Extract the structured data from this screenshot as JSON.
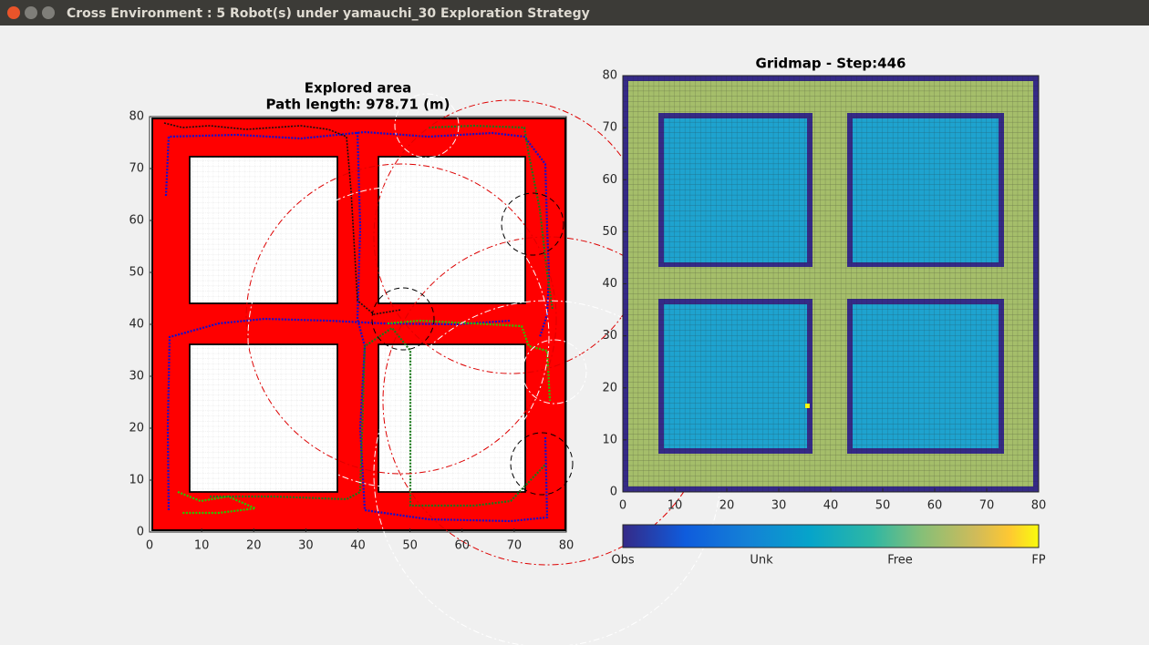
{
  "window": {
    "title": "Cross Environment : 5 Robot(s) under yamauchi_30 Exploration Strategy"
  },
  "chart_data": [
    {
      "type": "map",
      "title": "Explored area",
      "subtitle": "Path length: 978.71 (m)",
      "xlim": [
        0,
        80
      ],
      "ylim": [
        0,
        80
      ],
      "xticks": [
        0,
        10,
        20,
        30,
        40,
        50,
        60,
        70,
        80
      ],
      "yticks": [
        0,
        10,
        20,
        30,
        40,
        50,
        60,
        70,
        80
      ]
    },
    {
      "type": "heatmap",
      "title": "Gridmap - Step:446",
      "xlim": [
        0,
        80
      ],
      "ylim": [
        0,
        80
      ],
      "xticks": [
        0,
        10,
        20,
        30,
        40,
        50,
        60,
        70,
        80
      ],
      "yticks": [
        0,
        10,
        20,
        30,
        40,
        50,
        60,
        70,
        80
      ],
      "colorbar": [
        "Obs",
        "Unk",
        "Free",
        "FP"
      ]
    }
  ]
}
